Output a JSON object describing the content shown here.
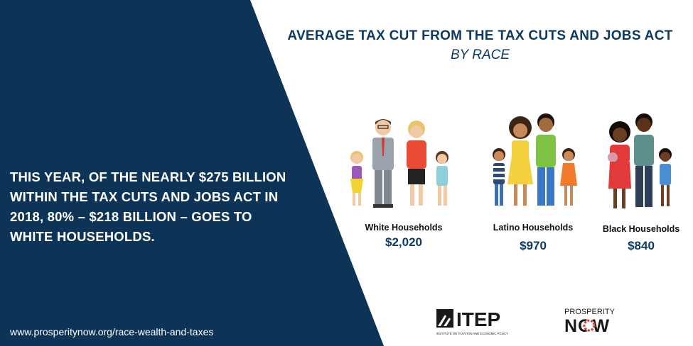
{
  "colors": {
    "panel": "#0d3457",
    "title": "#0d3a63",
    "white": "#ffffff",
    "now_red": "#e2322b"
  },
  "statement": {
    "lines": [
      "THIS YEAR, OF THE NEARLY $275 BILLION",
      "WITHIN THE TAX CUTS AND JOBS ACT IN",
      "2018, 80% – $218 BILLION – GOES TO",
      "WHITE HOUSEHOLDS."
    ]
  },
  "url": "www.prosperitynow.org/race-wealth-and-taxes",
  "title": "AVERAGE TAX CUT FROM THE TAX CUTS AND JOBS ACT",
  "subtitle": "BY RACE",
  "groups": [
    {
      "label": "White Households",
      "value": "$2,020",
      "icon": "white-family-illustration"
    },
    {
      "label": "Latino Households",
      "value": "$970",
      "icon": "latino-family-illustration"
    },
    {
      "label": "Black Households",
      "value": "$840",
      "icon": "black-family-illustration"
    }
  ],
  "logos": {
    "itep": {
      "name": "ITEP",
      "tagline": "INSTITUTE ON TAXATION AND ECONOMIC POLICY"
    },
    "prosperity_now": {
      "line1": "PROSPERITY",
      "line2": "NOW"
    }
  }
}
